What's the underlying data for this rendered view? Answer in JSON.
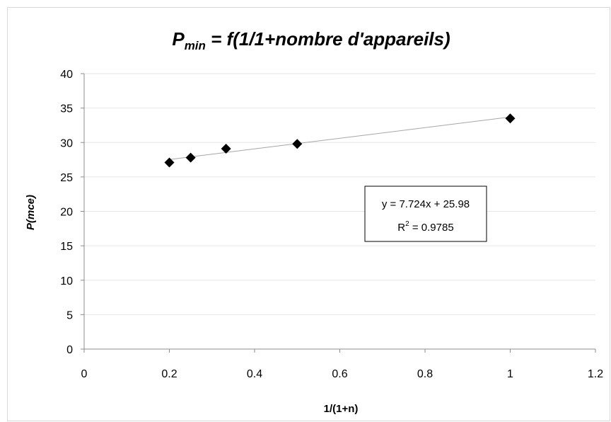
{
  "chart_data": {
    "type": "scatter",
    "title": {
      "main": "P",
      "subscript": "min",
      "rest": " = f(1/1+nombre d'appareils)"
    },
    "xlabel": "1/(1+n)",
    "ylabel": "P(mce)",
    "xlim": [
      0,
      1.2
    ],
    "ylim": [
      0,
      40
    ],
    "xticks": [
      "0",
      "0.2",
      "0.4",
      "0.6",
      "0.8",
      "1",
      "1.2"
    ],
    "yticks": [
      "0",
      "5",
      "10",
      "15",
      "20",
      "25",
      "30",
      "35",
      "40"
    ],
    "grid": "horizontal",
    "points": {
      "x": [
        0.2,
        0.25,
        0.333,
        0.5,
        1.0
      ],
      "y": [
        27.1,
        27.8,
        29.1,
        29.8,
        33.5
      ]
    },
    "trendline": {
      "slope": 7.724,
      "intercept": 25.98,
      "x_range": [
        0.2,
        1.0
      ]
    },
    "equation": {
      "line": "y = 7.724x + 25.98",
      "r2_prefix": "R",
      "r2_exp": "2",
      "r2_suffix": " = 0.9785"
    },
    "colors": {
      "marker": "#000000",
      "grid": "#e6e6e6",
      "axis": "#8c8c8c",
      "trendline": "#a6a6a6"
    }
  }
}
